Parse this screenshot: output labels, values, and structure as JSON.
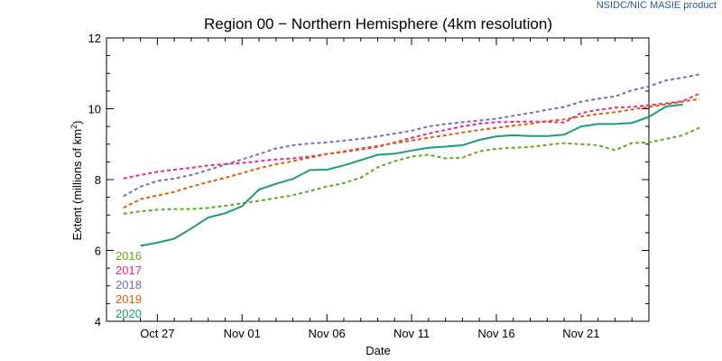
{
  "credit": "NSIDC/NIC MASIE product",
  "chart_data": {
    "type": "line",
    "title": "Region 00 − Northern Hemisphere (4km resolution)",
    "xlabel": "Date",
    "ylabel_main": "Extent (millions of km",
    "ylabel_sup": "2",
    "ylabel_close": ")",
    "ylim": [
      4,
      12
    ],
    "yticks": [
      4,
      6,
      8,
      10,
      12
    ],
    "xticks": [
      {
        "day": 3,
        "label": "Oct 27"
      },
      {
        "day": 8,
        "label": "Nov 01"
      },
      {
        "day": 13,
        "label": "Nov 06"
      },
      {
        "day": 18,
        "label": "Nov 11"
      },
      {
        "day": 23,
        "label": "Nov 16"
      },
      {
        "day": 28,
        "label": "Nov 21"
      }
    ],
    "xlim": [
      0,
      32
    ],
    "x_start_day": 1,
    "grid": false,
    "legend_position": "bottom-left",
    "series": [
      {
        "name": "2016",
        "color": "#66a61e",
        "dashed": true,
        "values": [
          7.04,
          7.1,
          7.15,
          7.17,
          7.17,
          7.2,
          7.26,
          7.33,
          7.4,
          7.48,
          7.56,
          7.68,
          7.8,
          7.9,
          8.05,
          8.35,
          8.52,
          8.65,
          8.7,
          8.6,
          8.62,
          8.8,
          8.87,
          8.9,
          8.92,
          8.98,
          9.03,
          9.0,
          8.97,
          8.83,
          9.03,
          9.05,
          9.15,
          9.25,
          9.47
        ]
      },
      {
        "name": "2017",
        "color": "#e7298a",
        "dashed": true,
        "values": [
          8.03,
          8.13,
          8.22,
          8.28,
          8.33,
          8.4,
          8.44,
          8.47,
          8.52,
          8.57,
          8.6,
          8.65,
          8.72,
          8.78,
          8.85,
          8.92,
          9.05,
          9.18,
          9.3,
          9.4,
          9.5,
          9.58,
          9.62,
          9.63,
          9.64,
          9.63,
          9.61,
          9.88,
          9.97,
          10.03,
          10.05,
          10.1,
          10.15,
          10.22,
          10.43
        ]
      },
      {
        "name": "2018",
        "color": "#7570b3",
        "dashed": true,
        "values": [
          7.53,
          7.8,
          7.96,
          8.03,
          8.13,
          8.27,
          8.42,
          8.57,
          8.72,
          8.88,
          8.97,
          9.02,
          9.05,
          9.1,
          9.15,
          9.22,
          9.3,
          9.38,
          9.5,
          9.57,
          9.62,
          9.67,
          9.72,
          9.8,
          9.88,
          9.97,
          10.05,
          10.2,
          10.28,
          10.35,
          10.52,
          10.63,
          10.8,
          10.88,
          10.97
        ]
      },
      {
        "name": "2019",
        "color": "#d95f02",
        "dashed": true,
        "values": [
          7.2,
          7.45,
          7.55,
          7.65,
          7.8,
          7.93,
          8.05,
          8.18,
          8.32,
          8.43,
          8.52,
          8.62,
          8.72,
          8.8,
          8.88,
          8.95,
          9.03,
          9.1,
          9.18,
          9.25,
          9.33,
          9.4,
          9.46,
          9.52,
          9.58,
          9.65,
          9.7,
          9.78,
          9.85,
          9.9,
          9.98,
          10.05,
          10.12,
          10.2,
          10.28
        ]
      },
      {
        "name": "2020",
        "color": "#1b9e77",
        "dashed": false,
        "values": [
          null,
          6.13,
          6.22,
          6.33,
          6.62,
          6.93,
          7.05,
          7.25,
          7.72,
          7.88,
          8.02,
          8.27,
          8.28,
          8.4,
          8.55,
          8.7,
          8.73,
          8.82,
          8.9,
          8.93,
          8.97,
          9.12,
          9.22,
          9.25,
          9.23,
          9.23,
          9.27,
          9.5,
          9.57,
          9.57,
          9.6,
          9.77,
          10.06,
          10.12,
          null
        ]
      }
    ]
  }
}
